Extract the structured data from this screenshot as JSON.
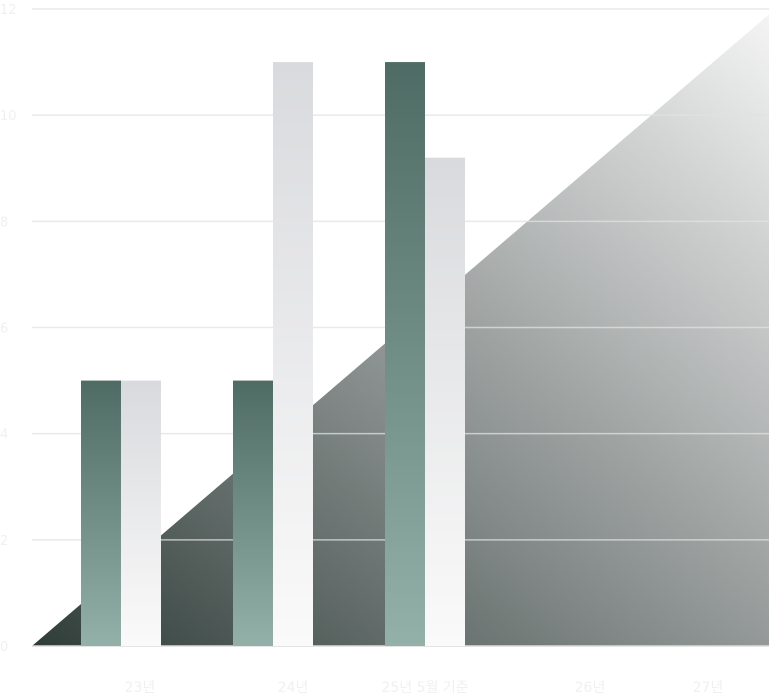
{
  "chart_data": {
    "type": "bar",
    "categories": [
      "23년",
      "24년",
      "25년 5월 기준",
      "26년",
      "27년"
    ],
    "series": [
      {
        "values": [
          5,
          5,
          11,
          null,
          null
        ],
        "color_top": "#4e6b64",
        "color_bottom": "#93b1a8"
      },
      {
        "values": [
          5,
          11,
          9.2,
          null,
          null
        ],
        "color_top": "#d9dadd",
        "color_bottom": "#fafafa"
      }
    ],
    "background_area": {
      "type": "area",
      "start_value": 0,
      "end_value": 11.9,
      "color_start": "#2f3d39",
      "color_end": "#f4f4f4"
    },
    "ylim": [
      0,
      12
    ],
    "yticks": [
      "0",
      "2",
      "4",
      "6",
      "8",
      "10",
      "12"
    ],
    "grid": true,
    "title": "",
    "xlabel": "",
    "ylabel": ""
  }
}
